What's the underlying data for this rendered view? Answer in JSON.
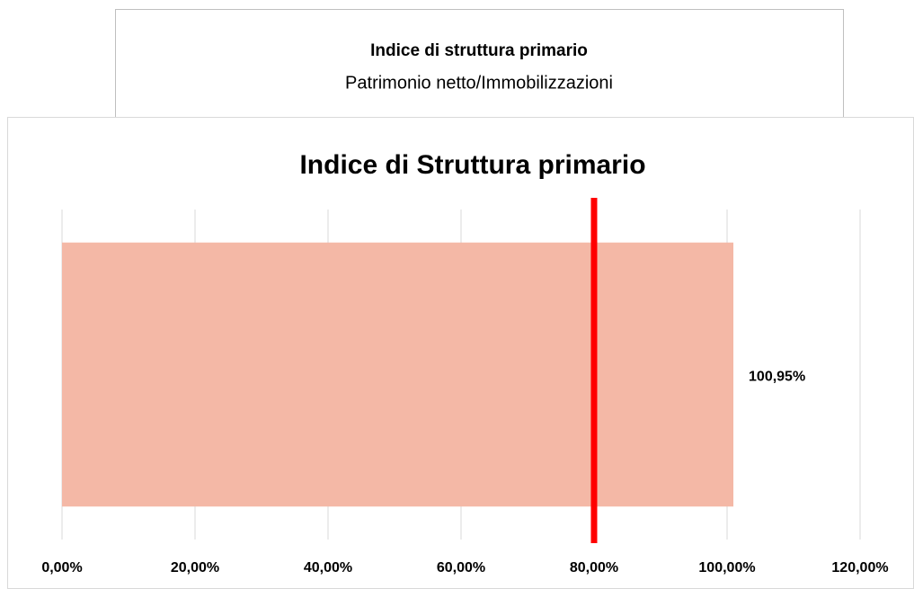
{
  "header": {
    "title": "Indice di struttura primario",
    "subtitle": "Patrimonio netto/Immobilizzazioni"
  },
  "chart_data": {
    "type": "bar",
    "orientation": "horizontal",
    "title": "Indice di Struttura primario",
    "categories": [
      null
    ],
    "values": [
      100.95
    ],
    "value_labels": [
      "100,95%"
    ],
    "color": "#f4b8a6",
    "xlim": [
      0,
      120
    ],
    "xticks": [
      {
        "value": 0,
        "label": "0,00%"
      },
      {
        "value": 20,
        "label": "20,00%"
      },
      {
        "value": 40,
        "label": "40,00%"
      },
      {
        "value": 60,
        "label": "60,00%"
      },
      {
        "value": 80,
        "label": "80,00%"
      },
      {
        "value": 100,
        "label": "100,00%"
      },
      {
        "value": 120,
        "label": "120,00%"
      }
    ],
    "grid": true,
    "reference_line": {
      "value": 80,
      "color": "#ff0000"
    }
  }
}
